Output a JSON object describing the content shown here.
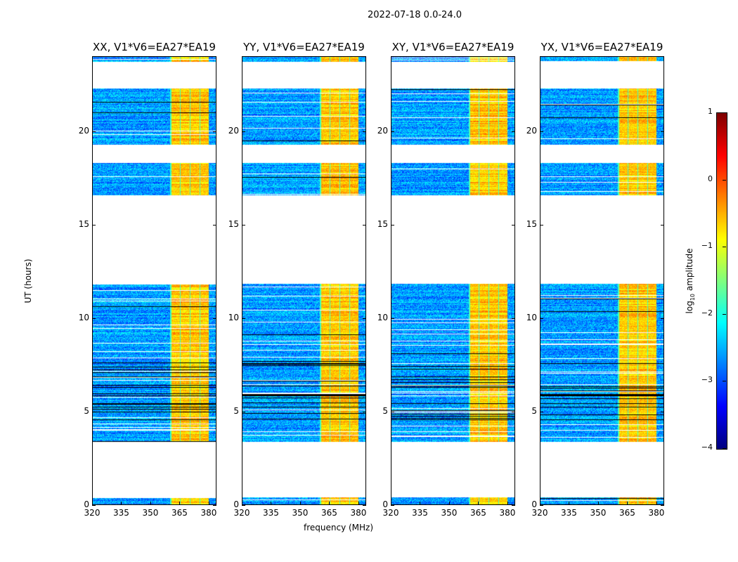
{
  "chart_data": {
    "type": "heatmap",
    "title": "2022-07-18 0.0-24.0",
    "xlabel": "frequency (MHz)",
    "ylabel": "UT (hours)",
    "xlim": [
      320,
      384
    ],
    "ylim": [
      0,
      24
    ],
    "xticks": [
      "320",
      "335",
      "350",
      "365",
      "380"
    ],
    "xtick_values": [
      320,
      335,
      350,
      365,
      380
    ],
    "yticks": [
      "0",
      "5",
      "10",
      "15",
      "20"
    ],
    "ytick_values": [
      0,
      5,
      10,
      15,
      20
    ],
    "panels": [
      {
        "title": "XX, V1*V6=EA27*EA19"
      },
      {
        "title": "YY, V1*V6=EA27*EA19"
      },
      {
        "title": "XY, V1*V6=EA27*EA19"
      },
      {
        "title": "YX, V1*V6=EA27*EA19"
      }
    ],
    "data_blocks_hours": [
      [
        0.0,
        0.45
      ],
      [
        3.4,
        11.85
      ],
      [
        16.6,
        18.3
      ],
      [
        19.3,
        22.3
      ],
      [
        23.7,
        24.0
      ]
    ],
    "bright_band_mhz": [
      360,
      380
    ],
    "bright_band_log_amplitude": -0.6,
    "background_log_amplitude": -2.6,
    "colorbar": {
      "label": "log10 amplitude",
      "label_main": "log",
      "label_sub": "10",
      "label_rest": " amplitude",
      "range": [
        -4,
        1
      ],
      "ticks": [
        "1",
        "0",
        "−1",
        "−2",
        "−3",
        "−4"
      ],
      "tick_values": [
        1,
        0,
        -1,
        -2,
        -3,
        -4
      ],
      "colormap": "jet"
    }
  }
}
